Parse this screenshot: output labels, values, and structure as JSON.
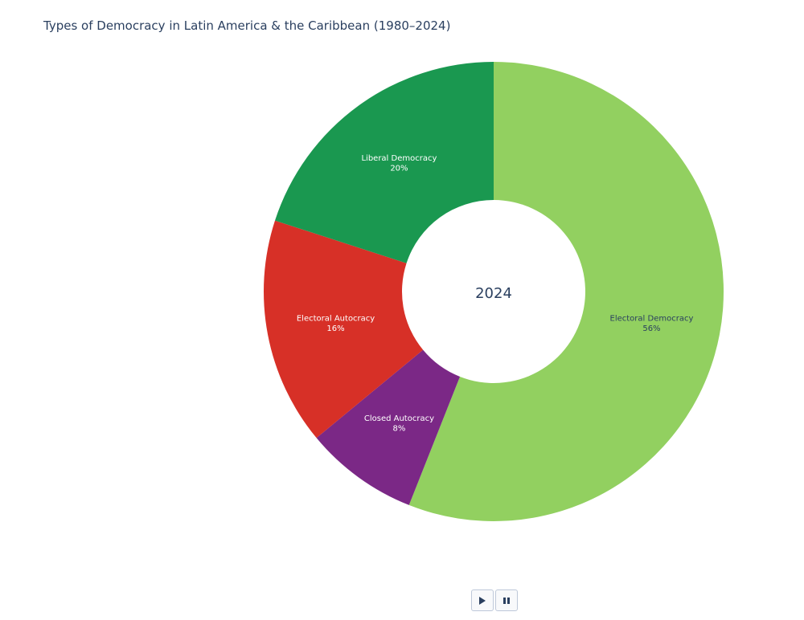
{
  "colors": {
    "title": "#2a3f5f",
    "background": "#ffffff"
  },
  "chart_data": {
    "type": "pie",
    "subtype": "donut",
    "title": "Types of Democracy in Latin America & the Caribbean (1980–2024)",
    "center_label": "2024",
    "slices": [
      {
        "label": "Electoral Democracy",
        "value": 56,
        "percent_label": "56%",
        "color": "#92d060",
        "text_color": "#2a3f5f"
      },
      {
        "label": "Closed Autocracy",
        "value": 8,
        "percent_label": "8%",
        "color": "#7b2886",
        "text_color": "#ffffff"
      },
      {
        "label": "Electoral Autocracy",
        "value": 16,
        "percent_label": "16%",
        "color": "#d73027",
        "text_color": "#ffffff"
      },
      {
        "label": "Liberal Democracy",
        "value": 20,
        "percent_label": "20%",
        "color": "#1a9850",
        "text_color": "#ffffff"
      }
    ],
    "direction": "clockwise",
    "start": "top"
  },
  "controls": {
    "play_icon": "play-icon",
    "pause_icon": "pause-icon"
  }
}
